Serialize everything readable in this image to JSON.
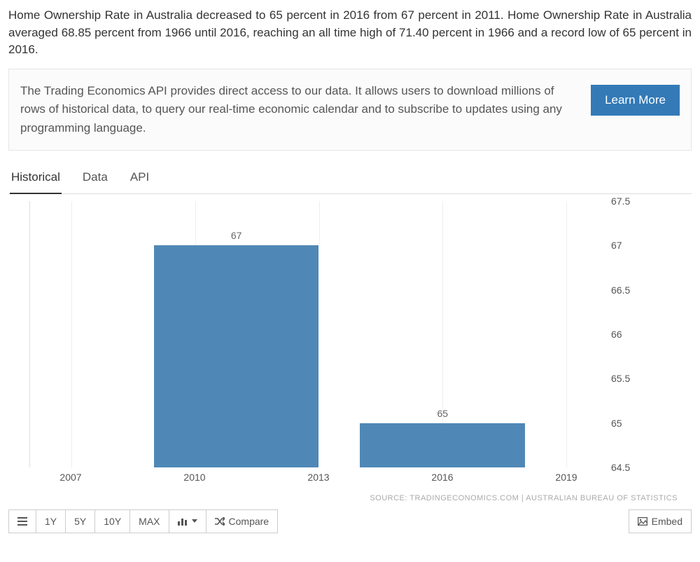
{
  "intro": "Home Ownership Rate in Australia decreased to 65 percent in 2016 from 67 percent in 2011. Home Ownership Rate in Australia averaged 68.85 percent from 1966 until 2016, reaching an all time high of 71.40 percent in 1966 and a record low of 65 percent in 2016.",
  "promo": {
    "text": "The Trading Economics API provides direct access to our data. It allows users to download millions of rows of historical data, to query our real-time economic calendar and to subscribe to updates using any programming language.",
    "button": "Learn More"
  },
  "tabs": {
    "historical": "Historical",
    "data": "Data",
    "api": "API",
    "active": "historical"
  },
  "chart": {
    "type": "bar",
    "ylim": [
      64.5,
      67.5
    ],
    "ytick_step": 0.5,
    "yticks": [
      64.5,
      65,
      65.5,
      66,
      66.5,
      67,
      67.5
    ],
    "xlim": [
      2006,
      2020
    ],
    "xticks": [
      2007,
      2010,
      2013,
      2016,
      2019
    ],
    "bars": [
      {
        "x_start": 2009.0,
        "x_end": 2013.0,
        "value": 67,
        "label": "67"
      },
      {
        "x_start": 2014.0,
        "x_end": 2018.0,
        "value": 65,
        "label": "65"
      }
    ],
    "bar_color": "#4f88b6",
    "grid_color": "#eeeeee",
    "axis_color": "#dddddd",
    "background_color": "#ffffff",
    "label_fontsize": 14
  },
  "source": "SOURCE: TRADINGECONOMICS.COM | AUSTRALIAN BUREAU OF STATISTICS",
  "toolbar": {
    "ranges": {
      "y1": "1Y",
      "y5": "5Y",
      "y10": "10Y",
      "max": "MAX"
    },
    "compare": "Compare",
    "embed": "Embed"
  }
}
